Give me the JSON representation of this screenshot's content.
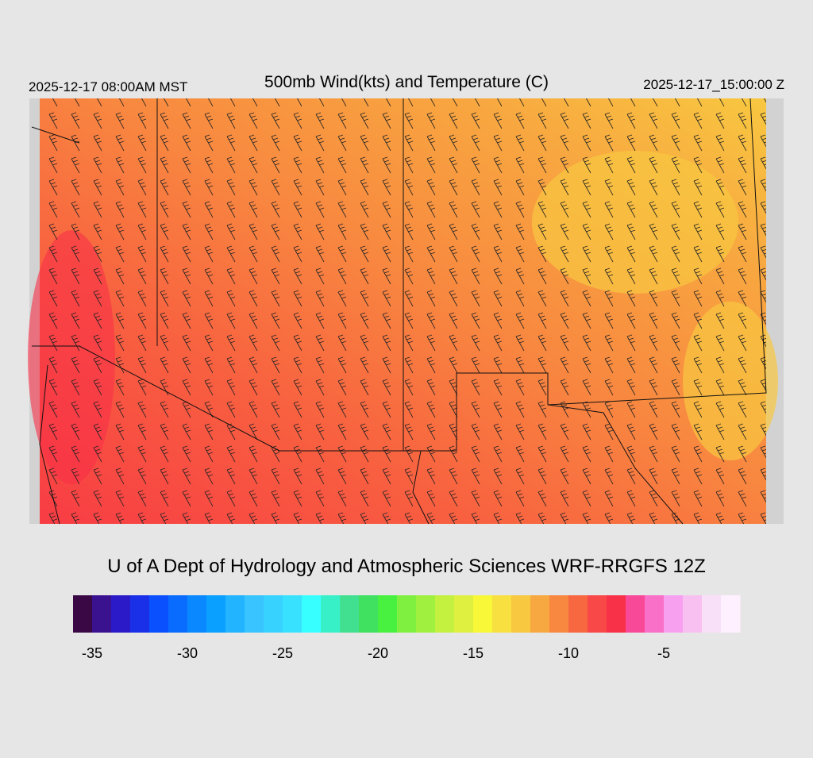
{
  "header": {
    "title": "500mb Wind(kts) and Temperature (C)",
    "local_time": "2025-12-17 08:00AM MST",
    "valid_time": "2025-12-17_15:00:00 Z"
  },
  "credit": "U of A Dept of Hydrology and Atmospheric Sciences WRF-RRGFS 12Z",
  "colorbar": {
    "min": -36,
    "max": -1,
    "colors": [
      "#3a0845",
      "#3a1290",
      "#2a1ac8",
      "#1a30e8",
      "#0a50ff",
      "#0a6cff",
      "#0a88ff",
      "#0aa0ff",
      "#22b4ff",
      "#3ac4ff",
      "#38d2ff",
      "#38e2ff",
      "#38ffff",
      "#38f0c8",
      "#40e090",
      "#40e060",
      "#48f040",
      "#80f040",
      "#a0f040",
      "#c4f040",
      "#e0f040",
      "#f8f838",
      "#f8e040",
      "#f8c840",
      "#f8a840",
      "#f88840",
      "#f86840",
      "#f84848",
      "#f83048",
      "#f84898",
      "#f870c8",
      "#f8a0f0",
      "#f8c0f0",
      "#f8e0f8",
      "#fff0ff"
    ],
    "ticks": [
      -35,
      -30,
      -25,
      -20,
      -15,
      -10,
      -5
    ]
  }
}
